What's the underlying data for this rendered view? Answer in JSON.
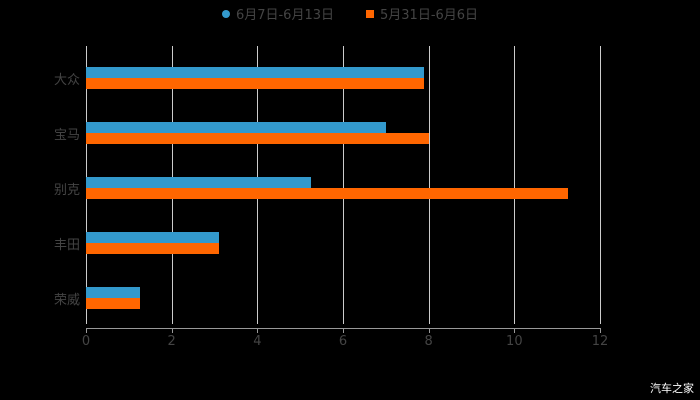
{
  "legend": [
    {
      "label": "6月7日-6月13日",
      "color": "#3399cc"
    },
    {
      "label": "5月31日-6月6日",
      "color": "#ff6600"
    }
  ],
  "watermark": "汽车之家",
  "chart_data": {
    "type": "bar",
    "orientation": "horizontal",
    "categories": [
      "大众",
      "宝马",
      "别克",
      "丰田",
      "荣威"
    ],
    "series": [
      {
        "name": "6月7日-6月13日",
        "color": "#3399cc",
        "values": [
          7.9,
          7.0,
          5.25,
          3.1,
          1.25
        ]
      },
      {
        "name": "5月31日-6月6日",
        "color": "#ff6600",
        "values": [
          7.9,
          8.0,
          11.25,
          3.1,
          1.25
        ]
      }
    ],
    "title": "",
    "xlabel": "",
    "ylabel": "",
    "xlim": [
      0,
      12
    ],
    "xticks": [
      "0",
      "2",
      "4",
      "6",
      "8",
      "10",
      "12"
    ],
    "grid": true,
    "legend_position": "top"
  }
}
